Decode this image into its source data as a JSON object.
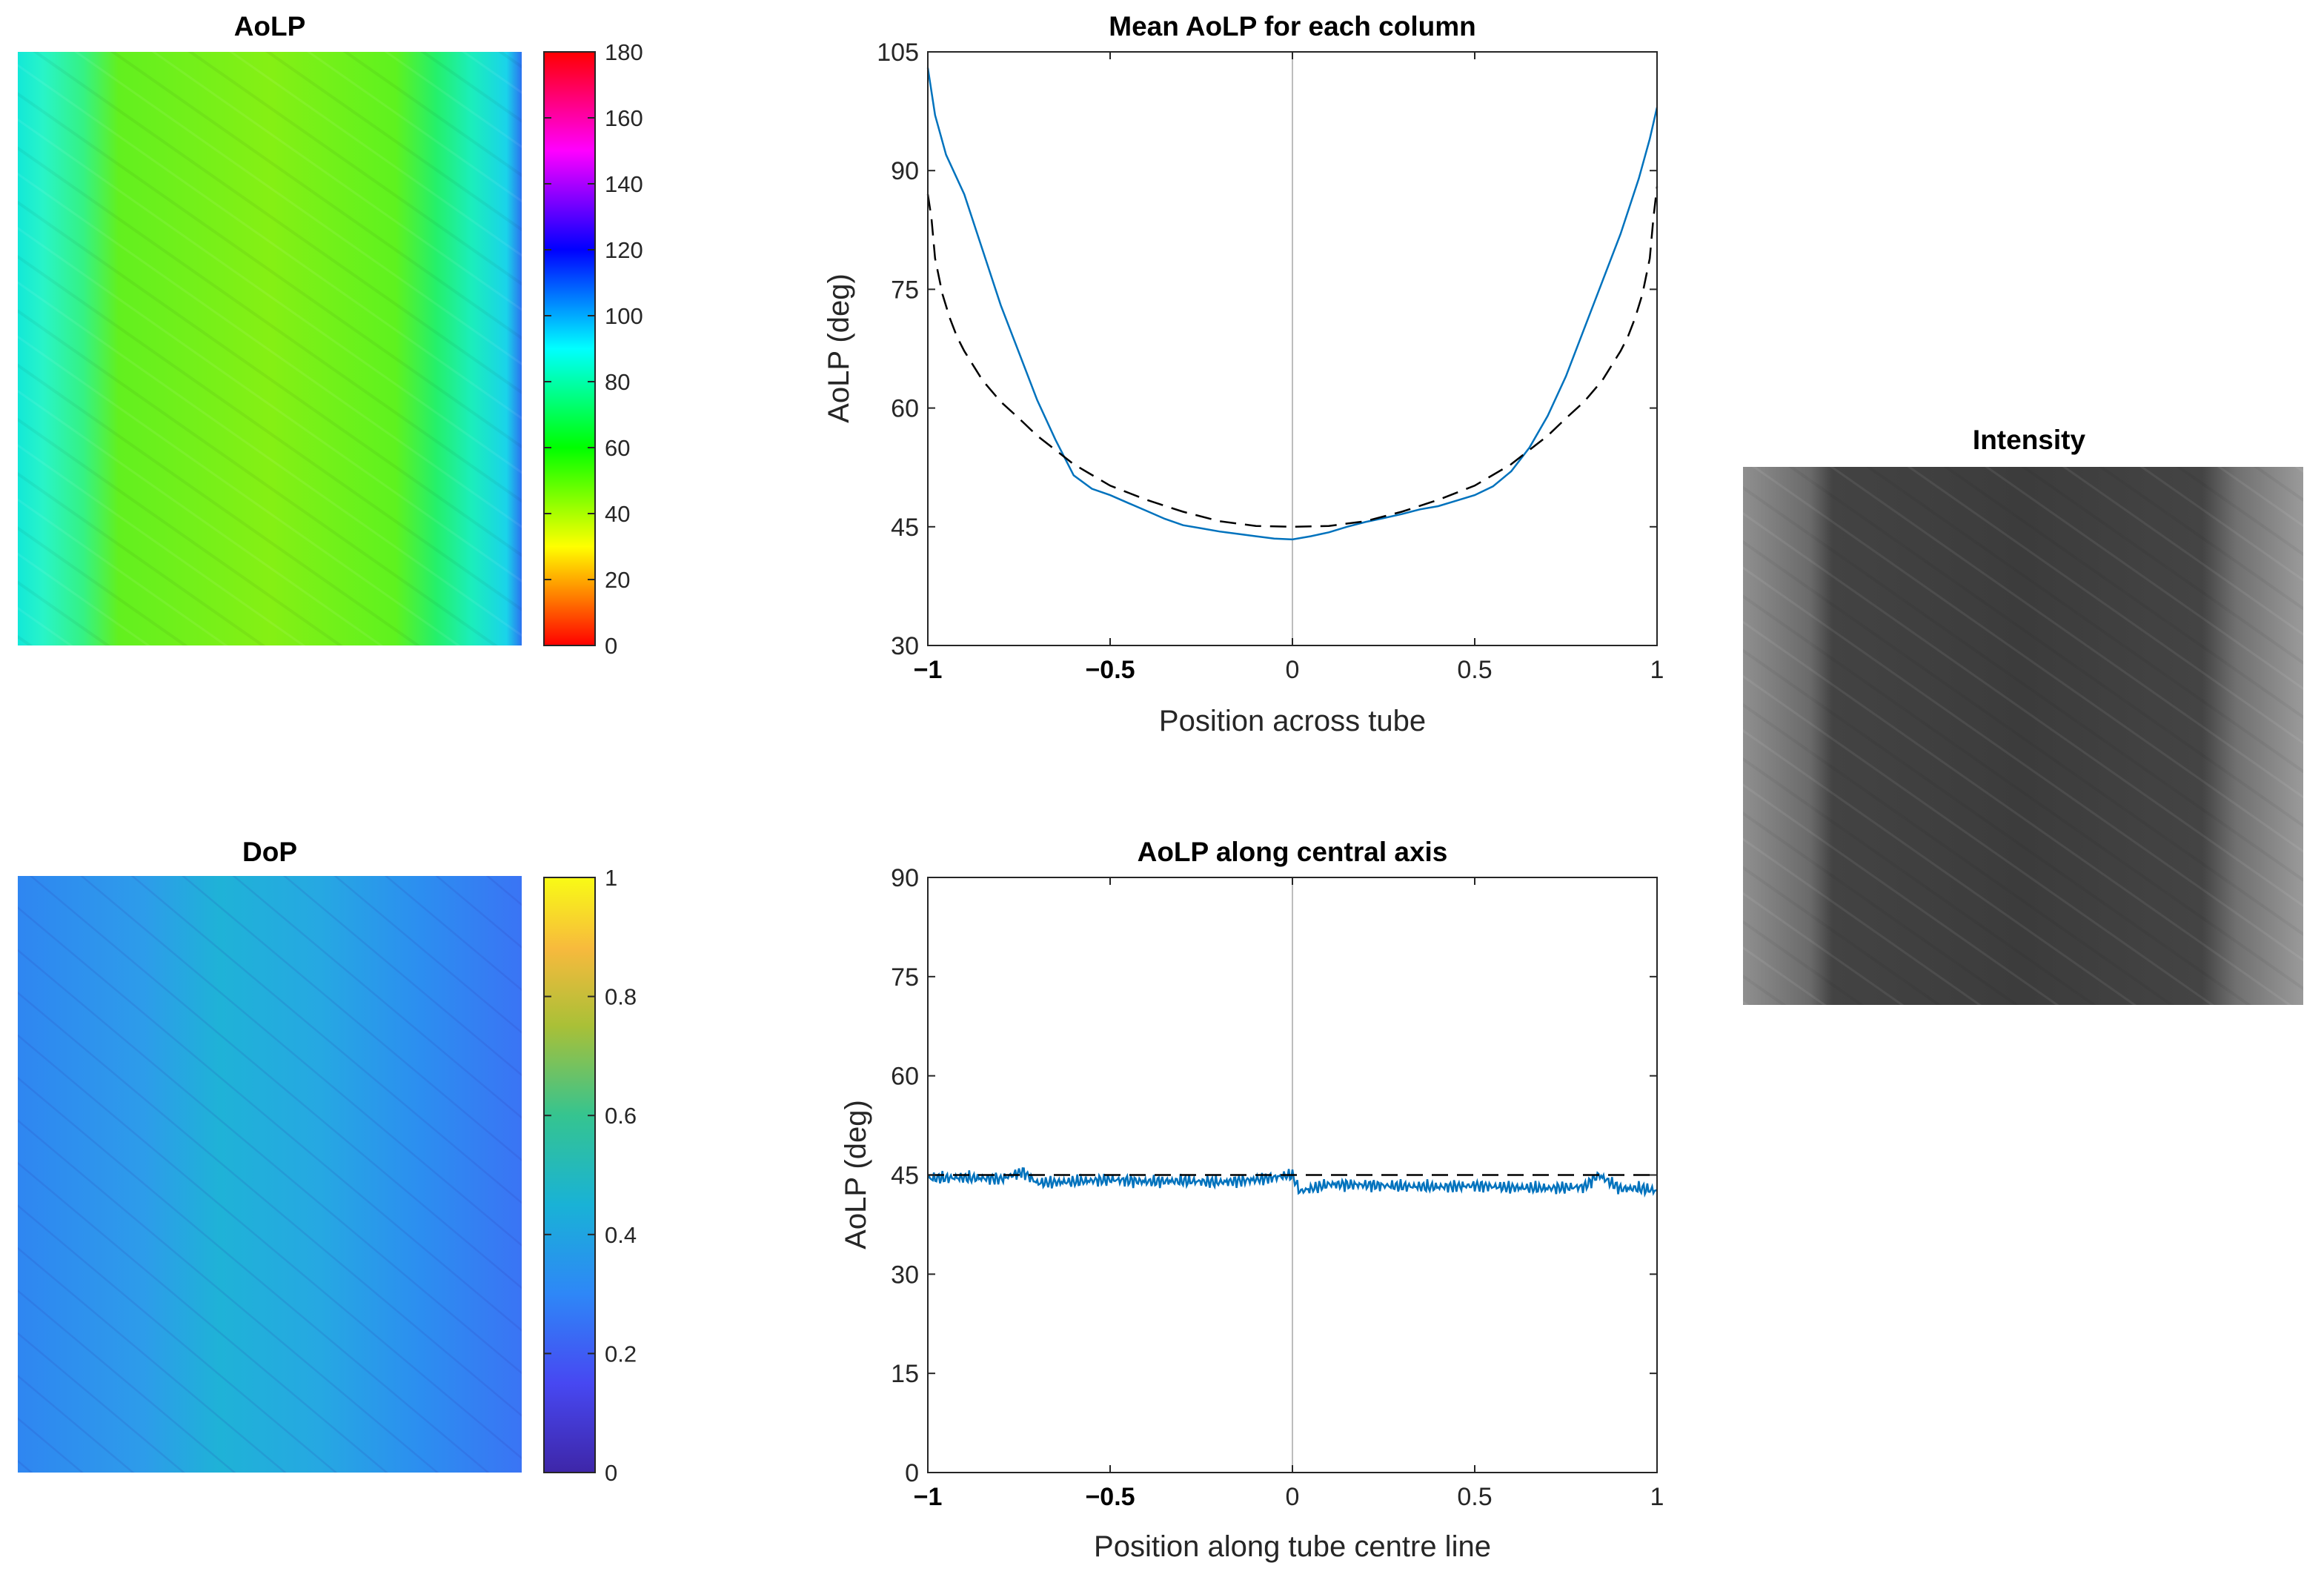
{
  "colors": {
    "line": "#0072bd",
    "reference_dashed": "#000000",
    "centre_line": "#bdbdbd",
    "axes": "#262626"
  },
  "images": {
    "aolp": {
      "title": "AoLP",
      "colormap": "hsv",
      "clim": [
        0,
        180
      ],
      "colorbar_ticks": [
        "0",
        "20",
        "40",
        "60",
        "80",
        "100",
        "120",
        "140",
        "160",
        "180"
      ]
    },
    "dop": {
      "title": "DoP",
      "colormap": "parula",
      "clim": [
        0,
        1
      ],
      "colorbar_ticks": [
        "0",
        "0.2",
        "0.4",
        "0.6",
        "0.8",
        "1"
      ]
    },
    "intensity": {
      "title": "Intensity",
      "colormap": "gray"
    }
  },
  "chart_data": [
    {
      "type": "line",
      "title": "Mean AoLP for each column",
      "xlabel": "Position across tube",
      "ylabel": "AoLP (deg)",
      "xlim": [
        -1,
        1
      ],
      "ylim": [
        30,
        105
      ],
      "xticks": [
        "-1",
        "-0.5",
        "0",
        "0.5",
        "1"
      ],
      "yticks": [
        "30",
        "45",
        "60",
        "75",
        "90",
        "105"
      ],
      "grid": false,
      "series": [
        {
          "style": "solid",
          "color": "#0072bd",
          "x": [
            -1.0,
            -0.98,
            -0.95,
            -0.9,
            -0.85,
            -0.8,
            -0.75,
            -0.7,
            -0.65,
            -0.6,
            -0.55,
            -0.5,
            -0.45,
            -0.4,
            -0.35,
            -0.3,
            -0.25,
            -0.2,
            -0.15,
            -0.1,
            -0.05,
            0.0,
            0.05,
            0.1,
            0.15,
            0.2,
            0.25,
            0.3,
            0.35,
            0.4,
            0.45,
            0.5,
            0.55,
            0.6,
            0.65,
            0.7,
            0.75,
            0.8,
            0.85,
            0.9,
            0.95,
            0.98,
            1.0
          ],
          "y": [
            103,
            97,
            92,
            87,
            80,
            73,
            67,
            61,
            56,
            51.5,
            49.8,
            49,
            48,
            47,
            46,
            45.2,
            44.8,
            44.4,
            44.1,
            43.8,
            43.5,
            43.4,
            43.8,
            44.3,
            45,
            45.6,
            46.1,
            46.6,
            47.2,
            47.6,
            48.3,
            49,
            50.1,
            52,
            55,
            59,
            64,
            70,
            76,
            82,
            89,
            94,
            98
          ]
        },
        {
          "style": "dashed",
          "color": "#000000",
          "x": [
            -1.0,
            -0.99,
            -0.98,
            -0.96,
            -0.94,
            -0.92,
            -0.9,
            -0.85,
            -0.8,
            -0.75,
            -0.7,
            -0.6,
            -0.5,
            -0.4,
            -0.3,
            -0.2,
            -0.1,
            0.0,
            0.1,
            0.2,
            0.3,
            0.4,
            0.5,
            0.6,
            0.7,
            0.75,
            0.8,
            0.85,
            0.9,
            0.92,
            0.94,
            0.96,
            0.98,
            0.99,
            1.0
          ],
          "y": [
            87,
            84,
            78.9,
            74.4,
            71.4,
            69,
            67.2,
            63.5,
            60.8,
            58.7,
            56.5,
            52.9,
            50.2,
            48.4,
            46.9,
            45.7,
            45.1,
            45,
            45.1,
            45.7,
            46.9,
            48.4,
            50.2,
            52.9,
            56.5,
            58.7,
            60.8,
            63.5,
            67.2,
            69,
            71.4,
            74.4,
            78.9,
            84,
            88
          ]
        }
      ]
    },
    {
      "type": "line",
      "title": "AoLP along central axis",
      "xlabel": "Position along tube centre line",
      "ylabel": "AoLP (deg)",
      "xlim": [
        -1,
        1
      ],
      "ylim": [
        0,
        90
      ],
      "xticks": [
        "-1",
        "-0.5",
        "0",
        "0.5",
        "1"
      ],
      "yticks": [
        "0",
        "15",
        "30",
        "45",
        "60",
        "75",
        "90"
      ],
      "grid": false,
      "series": [
        {
          "style": "solid",
          "color": "#0072bd",
          "description_free": true,
          "x": [
            -1.0,
            -0.9,
            -0.8,
            -0.74,
            -0.7,
            -0.6,
            -0.5,
            -0.4,
            -0.3,
            -0.2,
            -0.1,
            0.0,
            0.02,
            0.1,
            0.2,
            0.3,
            0.4,
            0.5,
            0.6,
            0.7,
            0.8,
            0.84,
            0.9,
            0.95,
            1.0
          ],
          "y": [
            44.5,
            44.6,
            44.4,
            45.5,
            43.8,
            44.0,
            44.3,
            44.0,
            44.1,
            43.9,
            44.3,
            45.0,
            42.5,
            43.6,
            43.5,
            43.3,
            43.2,
            43.4,
            43.1,
            43.0,
            43.2,
            45.0,
            42.9,
            43.0,
            42.6
          ]
        },
        {
          "style": "dashed",
          "color": "#000000",
          "x": [
            -1,
            1
          ],
          "y": [
            45,
            45
          ]
        }
      ]
    }
  ]
}
